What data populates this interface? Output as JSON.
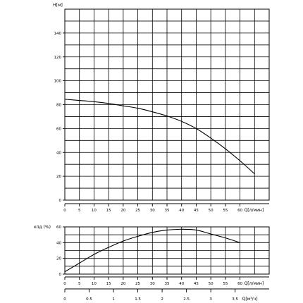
{
  "chart_data": [
    {
      "type": "line",
      "id": "head",
      "ylabel": "H[м]",
      "xlabel": "Q[л/мин]",
      "xlim": [
        0,
        70
      ],
      "ylim": [
        0,
        160
      ],
      "x_ticks": [
        0,
        5,
        10,
        15,
        20,
        25,
        30,
        35,
        40,
        45,
        50,
        55,
        60
      ],
      "y_ticks": [
        0,
        20,
        40,
        60,
        80,
        100,
        120,
        140
      ],
      "grid": true,
      "series": [
        {
          "x": [
            0,
            5,
            10,
            15,
            20,
            25,
            30,
            35,
            40,
            45,
            50,
            55,
            60,
            65
          ],
          "y": [
            84.5,
            83.5,
            82.5,
            81,
            79,
            77,
            74,
            70.5,
            66,
            60,
            52,
            43,
            33,
            22
          ]
        }
      ]
    },
    {
      "type": "line",
      "id": "efficiency",
      "ylabel": "кпд (%)",
      "xlabel": "Q[л/мин]",
      "xlim": [
        0,
        70
      ],
      "ylim": [
        0,
        60
      ],
      "x_ticks": [
        0,
        5,
        10,
        15,
        20,
        25,
        30,
        35,
        40,
        45,
        50,
        55,
        60
      ],
      "y_ticks": [
        0,
        20,
        40,
        60
      ],
      "grid": true,
      "series": [
        {
          "x": [
            0,
            5,
            10,
            15,
            20,
            25,
            30,
            35,
            40,
            45,
            50,
            55,
            60
          ],
          "y": [
            3,
            14,
            25,
            34,
            42,
            48,
            53,
            56,
            57,
            56,
            51,
            46,
            40
          ]
        }
      ]
    }
  ],
  "secondary_axis": {
    "label": "Q[м³/ч]",
    "ticks": [
      "0",
      "0.5",
      "1",
      "1.5",
      "2",
      "2.5",
      "3",
      "3.5"
    ],
    "values": [
      0,
      0.5,
      1,
      1.5,
      2,
      2.5,
      3,
      3.5
    ]
  }
}
